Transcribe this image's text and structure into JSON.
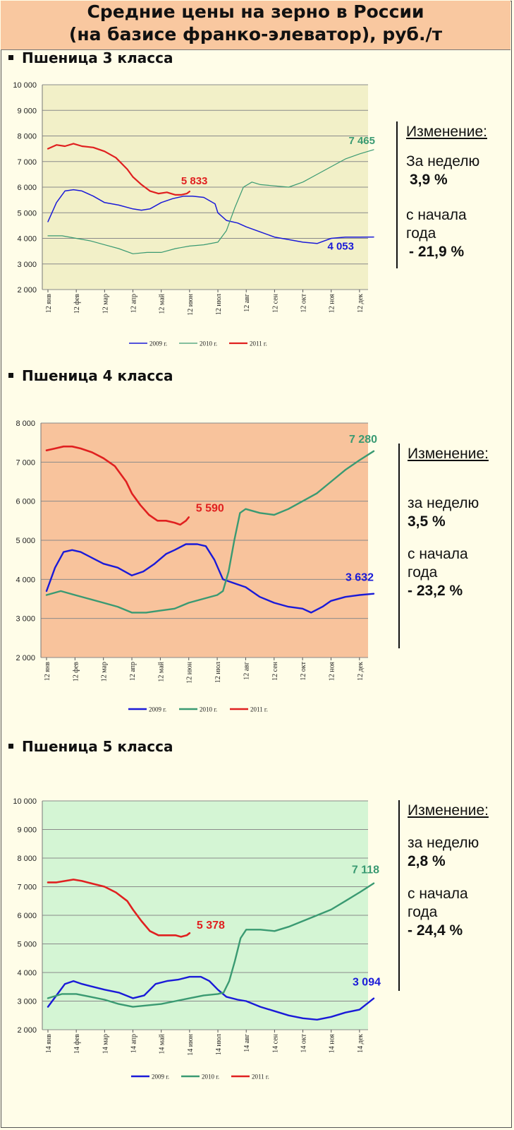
{
  "header": {
    "line1": "Средние цены на зерно в России",
    "line2": "(на базисе франко-элеватор), руб./т"
  },
  "sections": [
    {
      "title": "Пшеница 3  класса",
      "panel": {
        "heading": "Изменение:",
        "week_label": "За  неделю",
        "week_value": "3,9 %",
        "ytd_label1": "с начала",
        "ytd_label2": "года",
        "ytd_value": "- 21,9 %"
      }
    },
    {
      "title": "Пшеница 4 класса",
      "panel": {
        "heading": "Изменение:",
        "week_label": "за  неделю",
        "week_value": "3,5 %",
        "ytd_label1": "с начала",
        "ytd_label2": "года",
        "ytd_value": "- 23,2 %"
      }
    },
    {
      "title": "Пшеница 5 класса",
      "panel": {
        "heading": "Изменение:",
        "week_label": "за  неделю",
        "week_value": "2,8 %",
        "ytd_label1": "с начала",
        "ytd_label2": "года",
        "ytd_value": "- 24,4 %"
      }
    }
  ],
  "chart_data": [
    {
      "type": "line",
      "bg": "#f2f0c8",
      "ylim": [
        2000,
        10000
      ],
      "yticks": [
        2000,
        3000,
        4000,
        5000,
        6000,
        7000,
        8000,
        9000,
        10000
      ],
      "ytick_labels": [
        "2 000",
        "3 000",
        "4 000",
        "5 000",
        "6 000",
        "7 000",
        "8 000",
        "9 000",
        "10 000"
      ],
      "x_labels": [
        "12 янв",
        "12 фев",
        "12 мар",
        "12 апр",
        "12 май",
        "12 июн",
        "12 июл",
        "12 авг",
        "12 сен",
        "12 окт",
        "12 ноя",
        "12 дек"
      ],
      "legend": [
        "2009 г.",
        "2010 г.",
        "2011 г."
      ],
      "series": [
        {
          "name": "2009 г.",
          "color": "#1a1ad8",
          "width": 1.5,
          "x": [
            0,
            0.3,
            0.6,
            0.9,
            1.2,
            1.6,
            2.0,
            2.5,
            3.0,
            3.3,
            3.6,
            4.0,
            4.4,
            4.8,
            5.1,
            5.5,
            5.9,
            6.0,
            6.3,
            6.7,
            7.0,
            7.5,
            8.0,
            8.5,
            9.0,
            9.5,
            10.0,
            10.5,
            11.0,
            11.5
          ],
          "values": [
            4650,
            5400,
            5850,
            5900,
            5850,
            5650,
            5400,
            5300,
            5150,
            5100,
            5150,
            5400,
            5550,
            5650,
            5650,
            5600,
            5350,
            5000,
            4700,
            4600,
            4450,
            4250,
            4050,
            3950,
            3850,
            3800,
            4000,
            4050,
            4050,
            4053
          ]
        },
        {
          "name": "2010 г.",
          "color": "#3a9a72",
          "width": 1.2,
          "x": [
            0,
            0.5,
            1.0,
            1.5,
            2.0,
            2.5,
            3.0,
            3.5,
            4.0,
            4.5,
            5.0,
            5.5,
            6.0,
            6.3,
            6.6,
            6.9,
            7.2,
            7.5,
            8.0,
            8.5,
            9.0,
            9.5,
            10.0,
            10.5,
            11.0,
            11.5
          ],
          "values": [
            4100,
            4100,
            4000,
            3900,
            3750,
            3600,
            3400,
            3450,
            3450,
            3600,
            3700,
            3750,
            3850,
            4300,
            5200,
            6000,
            6200,
            6100,
            6050,
            6000,
            6200,
            6500,
            6800,
            7100,
            7300,
            7465
          ]
        },
        {
          "name": "2011 г.",
          "color": "#e02020",
          "width": 2.2,
          "x": [
            0,
            0.3,
            0.6,
            0.9,
            1.2,
            1.6,
            2.0,
            2.4,
            2.8,
            3.0,
            3.3,
            3.6,
            3.9,
            4.2,
            4.5,
            4.7,
            4.9,
            5.0
          ],
          "values": [
            7500,
            7650,
            7600,
            7700,
            7600,
            7550,
            7400,
            7150,
            6700,
            6400,
            6100,
            5850,
            5750,
            5800,
            5700,
            5700,
            5750,
            5833
          ]
        }
      ],
      "annotations": [
        {
          "text": "7 465",
          "series": "2010 г."
        },
        {
          "text": "5 833",
          "series": "2011 г."
        },
        {
          "text": "4 053",
          "series": "2009 г."
        }
      ]
    },
    {
      "type": "line",
      "bg": "#f8c39c",
      "ylim": [
        2000,
        8000
      ],
      "yticks": [
        2000,
        3000,
        4000,
        5000,
        6000,
        7000,
        8000
      ],
      "ytick_labels": [
        "2 000",
        "3 000",
        "4 000",
        "5 000",
        "6 000",
        "7 000",
        "8 000"
      ],
      "x_labels": [
        "12 янв",
        "12 фев",
        "12 мар",
        "12 апр",
        "12 май",
        "12 июн",
        "12 июл",
        "12 авг",
        "12 сен",
        "12 окт",
        "12 ноя",
        "12 дек"
      ],
      "legend": [
        "2009 г.",
        "2010 г.",
        "2011 г."
      ],
      "series": [
        {
          "name": "2009 г.",
          "color": "#1a1ad8",
          "width": 2.4,
          "x": [
            0,
            0.3,
            0.6,
            0.9,
            1.2,
            1.6,
            2.0,
            2.5,
            3.0,
            3.4,
            3.8,
            4.2,
            4.5,
            4.9,
            5.3,
            5.6,
            5.9,
            6.2,
            6.6,
            7.0,
            7.5,
            8.0,
            8.5,
            9.0,
            9.3,
            9.7,
            10.0,
            10.5,
            11.0,
            11.5
          ],
          "values": [
            3700,
            4300,
            4700,
            4750,
            4700,
            4550,
            4400,
            4300,
            4100,
            4200,
            4400,
            4650,
            4750,
            4900,
            4900,
            4850,
            4500,
            4000,
            3900,
            3800,
            3550,
            3400,
            3300,
            3250,
            3150,
            3300,
            3450,
            3550,
            3600,
            3632
          ]
        },
        {
          "name": "2010 г.",
          "color": "#3a9a72",
          "width": 2.4,
          "x": [
            0,
            0.5,
            1.0,
            1.5,
            2.0,
            2.5,
            3.0,
            3.5,
            4.0,
            4.5,
            5.0,
            5.5,
            6.0,
            6.2,
            6.4,
            6.6,
            6.8,
            7.0,
            7.5,
            8.0,
            8.5,
            9.0,
            9.5,
            10.0,
            10.5,
            11.0,
            11.5
          ],
          "values": [
            3600,
            3700,
            3600,
            3500,
            3400,
            3300,
            3150,
            3150,
            3200,
            3250,
            3400,
            3500,
            3600,
            3700,
            4200,
            5000,
            5700,
            5800,
            5700,
            5650,
            5800,
            6000,
            6200,
            6500,
            6800,
            7050,
            7280
          ]
        },
        {
          "name": "2011 г.",
          "color": "#e02020",
          "width": 2.6,
          "x": [
            0,
            0.3,
            0.6,
            0.9,
            1.2,
            1.6,
            2.0,
            2.4,
            2.8,
            3.0,
            3.3,
            3.6,
            3.9,
            4.2,
            4.5,
            4.7,
            4.9,
            5.0
          ],
          "values": [
            7300,
            7350,
            7400,
            7400,
            7350,
            7250,
            7100,
            6900,
            6500,
            6200,
            5900,
            5650,
            5500,
            5500,
            5450,
            5400,
            5500,
            5590
          ]
        }
      ],
      "annotations": [
        {
          "text": "7 280",
          "series": "2010 г."
        },
        {
          "text": "5 590",
          "series": "2011 г."
        },
        {
          "text": "3 632",
          "series": "2009 г."
        }
      ]
    },
    {
      "type": "line",
      "bg": "#d4f5d4",
      "ylim": [
        2000,
        10000
      ],
      "yticks": [
        2000,
        3000,
        4000,
        5000,
        6000,
        7000,
        8000,
        9000,
        10000
      ],
      "ytick_labels": [
        "2 000",
        "3 000",
        "4 000",
        "5 000",
        "6 000",
        "7 000",
        "8 000",
        "9 000",
        "10 000"
      ],
      "x_labels": [
        "14 янв",
        "14 фев",
        "14 мар",
        "14 апр",
        "14 май",
        "14 июн",
        "14 июл",
        "14 авг",
        "14 сен",
        "14 окт",
        "14 ноя",
        "14 дек"
      ],
      "legend": [
        "2009 г.",
        "2010 г.",
        "2011 г."
      ],
      "series": [
        {
          "name": "2009 г.",
          "color": "#1a1ad8",
          "width": 2.4,
          "x": [
            0,
            0.3,
            0.6,
            0.9,
            1.2,
            1.6,
            2.0,
            2.5,
            3.0,
            3.4,
            3.8,
            4.2,
            4.6,
            5.0,
            5.4,
            5.7,
            6.0,
            6.3,
            6.7,
            7.0,
            7.5,
            8.0,
            8.5,
            9.0,
            9.5,
            10.0,
            10.5,
            11.0,
            11.5
          ],
          "values": [
            2800,
            3200,
            3600,
            3700,
            3600,
            3500,
            3400,
            3300,
            3100,
            3200,
            3600,
            3700,
            3750,
            3850,
            3850,
            3700,
            3400,
            3150,
            3050,
            3000,
            2800,
            2650,
            2500,
            2400,
            2350,
            2450,
            2600,
            2700,
            3094
          ]
        },
        {
          "name": "2010 г.",
          "color": "#3a9a72",
          "width": 2.4,
          "x": [
            0,
            0.5,
            1.0,
            1.5,
            2.0,
            2.5,
            3.0,
            3.5,
            4.0,
            4.5,
            5.0,
            5.5,
            6.0,
            6.2,
            6.4,
            6.6,
            6.8,
            7.0,
            7.5,
            8.0,
            8.5,
            9.0,
            9.5,
            10.0,
            10.5,
            11.0,
            11.5
          ],
          "values": [
            3100,
            3250,
            3250,
            3150,
            3050,
            2900,
            2800,
            2850,
            2900,
            3000,
            3100,
            3200,
            3250,
            3300,
            3700,
            4400,
            5200,
            5500,
            5500,
            5450,
            5600,
            5800,
            6000,
            6200,
            6500,
            6800,
            7118
          ]
        },
        {
          "name": "2011 г.",
          "color": "#e02020",
          "width": 2.6,
          "x": [
            0,
            0.3,
            0.6,
            0.9,
            1.2,
            1.6,
            2.0,
            2.4,
            2.8,
            3.0,
            3.3,
            3.6,
            3.9,
            4.2,
            4.5,
            4.7,
            4.9,
            5.0
          ],
          "values": [
            7150,
            7150,
            7200,
            7250,
            7200,
            7100,
            7000,
            6800,
            6500,
            6200,
            5800,
            5450,
            5300,
            5300,
            5300,
            5250,
            5300,
            5378
          ]
        }
      ],
      "annotations": [
        {
          "text": "7 118",
          "series": "2010 г."
        },
        {
          "text": "5 378",
          "series": "2011 г."
        },
        {
          "text": "3 094",
          "series": "2009 г."
        }
      ]
    }
  ]
}
